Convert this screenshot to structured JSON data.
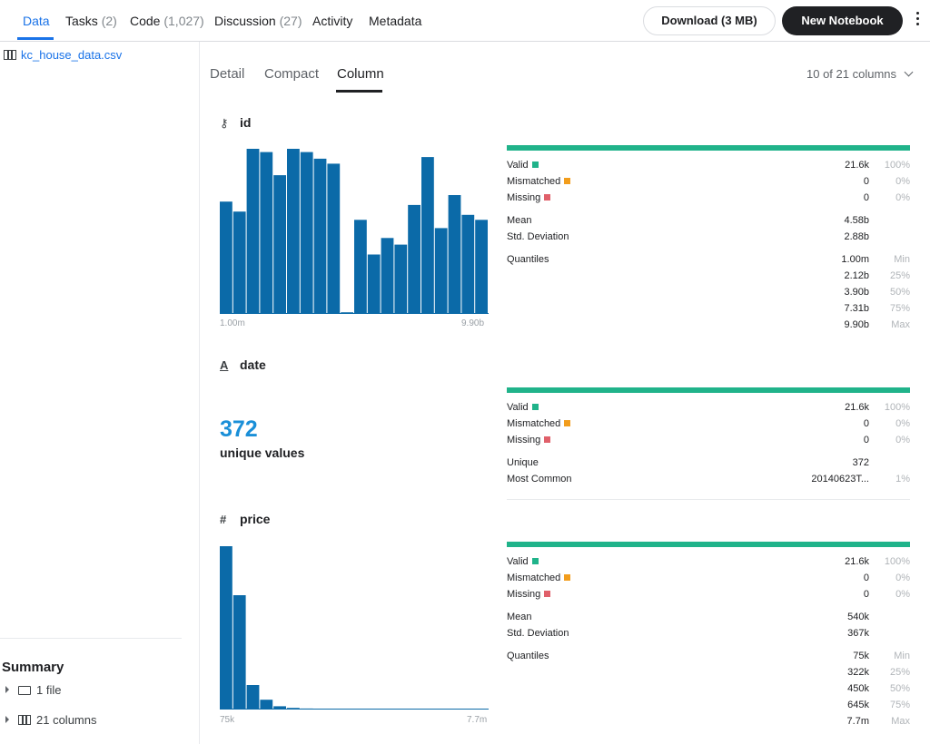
{
  "colors": {
    "accent": "#1a73e8",
    "bar": "#0b6aa8",
    "valid": "#20b38a",
    "mismatched": "#f29d1c",
    "missing": "#e0606a",
    "unique_value": "#1a8fd8"
  },
  "topnav": {
    "tabs": [
      {
        "label": "Data",
        "count": ""
      },
      {
        "label": "Tasks",
        "count": "(2)"
      },
      {
        "label": "Code",
        "count": "(1,027)"
      },
      {
        "label": "Discussion",
        "count": "(27)"
      },
      {
        "label": "Activity",
        "count": ""
      },
      {
        "label": "Metadata",
        "count": ""
      }
    ],
    "download_label": "Download (3 MB)",
    "new_notebook_label": "New Notebook",
    "more_icon": "kebab-menu-icon"
  },
  "sidebar": {
    "file_name": "kc_house_data.csv",
    "summary_title": "Summary",
    "summary_items": [
      {
        "label": "1 file",
        "icon": "folder-icon"
      },
      {
        "label": "21 columns",
        "icon": "table-icon"
      }
    ]
  },
  "main": {
    "view_tabs": [
      "Detail",
      "Compact",
      "Column"
    ],
    "active_view": "Column",
    "column_count": "10 of 21 columns"
  },
  "columns": [
    {
      "name": "id",
      "type_icon": "key-icon",
      "stats": {
        "valid": {
          "label": "Valid",
          "value": "21.6k",
          "pct": "100%"
        },
        "mismatched": {
          "label": "Mismatched",
          "value": "0",
          "pct": "0%"
        },
        "missing": {
          "label": "Missing",
          "value": "0",
          "pct": "0%"
        },
        "mean": {
          "label": "Mean",
          "value": "4.58b"
        },
        "std": {
          "label": "Std. Deviation",
          "value": "2.88b"
        },
        "quantiles_label": "Quantiles",
        "quantiles": [
          {
            "value": "1.00m",
            "tag": "Min"
          },
          {
            "value": "2.12b",
            "tag": "25%"
          },
          {
            "value": "3.90b",
            "tag": "50%"
          },
          {
            "value": "7.31b",
            "tag": "75%"
          },
          {
            "value": "9.90b",
            "tag": "Max"
          }
        ]
      },
      "histogram": {
        "x_min_label": "1.00m",
        "x_max_label": "9.90b",
        "relative_heights": [
          0.68,
          0.62,
          1.0,
          0.98,
          0.84,
          1.0,
          0.98,
          0.94,
          0.91,
          0.01,
          0.57,
          0.36,
          0.46,
          0.42,
          0.66,
          0.95,
          0.52,
          0.72,
          0.6,
          0.57
        ]
      }
    },
    {
      "name": "date",
      "type_icon": "string-icon",
      "unique_count": "372",
      "unique_label": "unique values",
      "stats": {
        "valid": {
          "label": "Valid",
          "value": "21.6k",
          "pct": "100%"
        },
        "mismatched": {
          "label": "Mismatched",
          "value": "0",
          "pct": "0%"
        },
        "missing": {
          "label": "Missing",
          "value": "0",
          "pct": "0%"
        },
        "unique": {
          "label": "Unique",
          "value": "372"
        },
        "most_common": {
          "label": "Most Common",
          "value": "20140623T...",
          "pct": "1%"
        }
      }
    },
    {
      "name": "price",
      "type_icon": "hash-icon",
      "stats": {
        "valid": {
          "label": "Valid",
          "value": "21.6k",
          "pct": "100%"
        },
        "mismatched": {
          "label": "Mismatched",
          "value": "0",
          "pct": "0%"
        },
        "missing": {
          "label": "Missing",
          "value": "0",
          "pct": "0%"
        },
        "mean": {
          "label": "Mean",
          "value": "540k"
        },
        "std": {
          "label": "Std. Deviation",
          "value": "367k"
        },
        "quantiles_label": "Quantiles",
        "quantiles": [
          {
            "value": "75k",
            "tag": "Min"
          },
          {
            "value": "322k",
            "tag": "25%"
          },
          {
            "value": "450k",
            "tag": "50%"
          },
          {
            "value": "645k",
            "tag": "75%"
          },
          {
            "value": "7.7m",
            "tag": "Max"
          }
        ]
      },
      "histogram": {
        "x_min_label": "75k",
        "x_max_label": "7.7m",
        "relative_heights": [
          1.0,
          0.7,
          0.15,
          0.06,
          0.02,
          0.01,
          0.006,
          0.005,
          0.004,
          0.003,
          0.003,
          0.002,
          0.002,
          0.002,
          0.002,
          0.001,
          0.001,
          0.001,
          0.001,
          0.001
        ]
      }
    }
  ]
}
